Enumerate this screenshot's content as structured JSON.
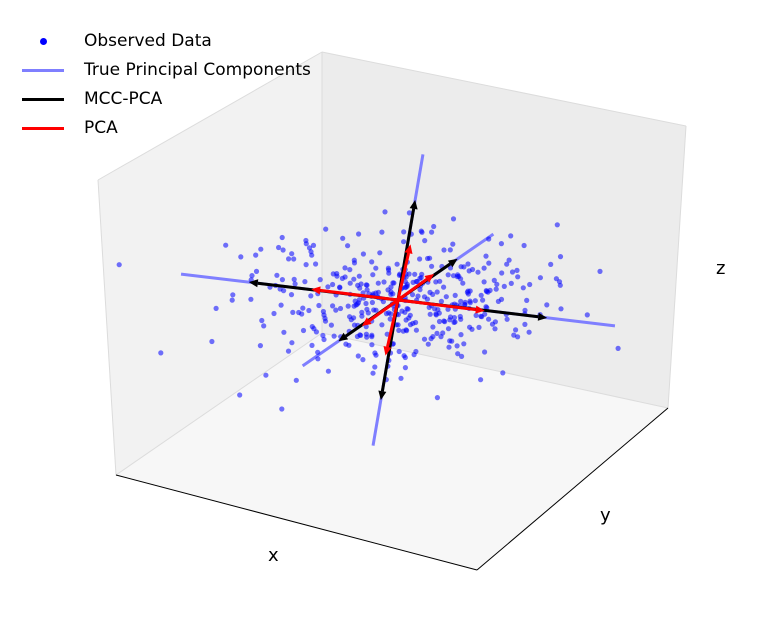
{
  "chart_data": {
    "type": "scatter",
    "title": "",
    "xlabel": "x",
    "ylabel": "y",
    "zlabel": "z",
    "grid": false,
    "legend_position": "top-left",
    "legend": [
      {
        "label": "Observed Data",
        "kind": "marker",
        "color": "#0000ff"
      },
      {
        "label": "True Principal Components",
        "kind": "line",
        "color": "#7f7fff"
      },
      {
        "label": "MCC-PCA",
        "kind": "line",
        "color": "#000000"
      },
      {
        "label": "PCA",
        "kind": "line",
        "color": "#ff0000"
      }
    ],
    "true_components": [
      [
        [
          -3.2,
          0,
          0
        ],
        [
          3.2,
          0,
          0
        ]
      ],
      [
        [
          0,
          -3.2,
          0
        ],
        [
          0,
          3.2,
          0
        ]
      ],
      [
        [
          0,
          0,
          -3.2
        ],
        [
          0,
          0,
          3.2
        ]
      ]
    ],
    "mcc_pca_arrows": [
      [
        2.2,
        0,
        0
      ],
      [
        -2.2,
        0,
        0
      ],
      [
        0,
        2.0,
        0
      ],
      [
        0,
        -2.0,
        0
      ],
      [
        0,
        0,
        2.2
      ],
      [
        0,
        0,
        -2.2
      ]
    ],
    "pca_arrows": [
      [
        1.25,
        0.08,
        -0.05
      ],
      [
        -1.25,
        -0.08,
        0.05
      ],
      [
        0.04,
        1.1,
        0.08
      ],
      [
        -0.04,
        -1.1,
        -0.08
      ],
      [
        0.02,
        0.06,
        1.2
      ],
      [
        -0.02,
        -0.06,
        -1.2
      ]
    ]
  }
}
